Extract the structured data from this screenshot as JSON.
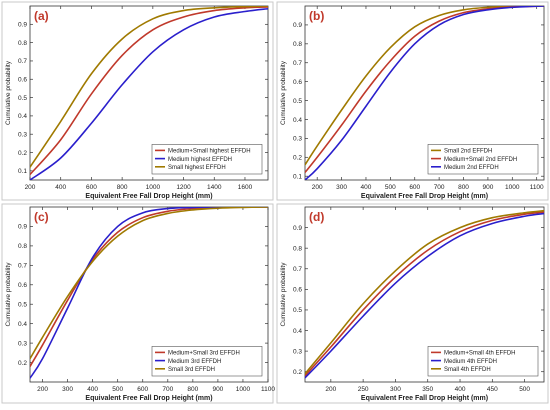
{
  "colors": {
    "medium_small": "#C0392B",
    "medium": "#2A1FCC",
    "small": "#A07A00",
    "panel_label": "#C0392B",
    "panel_border": "#C9C9C9",
    "axis": "#333333"
  },
  "chart_data": [
    {
      "panel": "(a)",
      "type": "line",
      "ylabel": "Cumulative probability",
      "xlabel": "Equivalent Free Fall Drop Height (mm)",
      "xlim": [
        200,
        1750
      ],
      "ylim": [
        0.05,
        1.0
      ],
      "xticks": [
        200,
        400,
        600,
        800,
        1000,
        1200,
        1400,
        1600
      ],
      "yticks": [
        0.1,
        0.2,
        0.3,
        0.4,
        0.5,
        0.6,
        0.7,
        0.8,
        0.9
      ],
      "legend_position": "bottom-right",
      "series": [
        {
          "name": "Medium+Small highest EFFDH",
          "color_key": "medium_small",
          "x": [
            200,
            400,
            600,
            800,
            1000,
            1200,
            1400,
            1600,
            1750
          ],
          "y": [
            0.08,
            0.27,
            0.52,
            0.73,
            0.87,
            0.94,
            0.975,
            0.99,
            0.995
          ]
        },
        {
          "name": "Medium highest EFFDH",
          "color_key": "medium",
          "x": [
            200,
            400,
            600,
            800,
            1000,
            1200,
            1400,
            1600,
            1750
          ],
          "y": [
            0.05,
            0.17,
            0.36,
            0.57,
            0.75,
            0.87,
            0.94,
            0.97,
            0.985
          ]
        },
        {
          "name": "Small highest EFFDH",
          "color_key": "small",
          "x": [
            200,
            400,
            600,
            800,
            1000,
            1200,
            1400,
            1600,
            1750
          ],
          "y": [
            0.12,
            0.37,
            0.63,
            0.82,
            0.93,
            0.975,
            0.99,
            0.997,
            1.0
          ]
        }
      ]
    },
    {
      "panel": "(b)",
      "type": "line",
      "ylabel": "Cumulative probability",
      "xlabel": "Equivalent Free Fall Drop Height (mm)",
      "xlim": [
        150,
        1130
      ],
      "ylim": [
        0.08,
        1.0
      ],
      "xticks": [
        200,
        300,
        400,
        500,
        600,
        700,
        800,
        900,
        1000,
        1100
      ],
      "yticks": [
        0.1,
        0.2,
        0.3,
        0.4,
        0.5,
        0.6,
        0.7,
        0.8,
        0.9
      ],
      "legend_position": "bottom-right",
      "series": [
        {
          "name": "Small 2nd EFFDH",
          "color_key": "small",
          "x": [
            150,
            200,
            300,
            400,
            500,
            600,
            700,
            800,
            900,
            1000,
            1130
          ],
          "y": [
            0.16,
            0.26,
            0.45,
            0.63,
            0.78,
            0.89,
            0.95,
            0.98,
            0.993,
            0.998,
            1.0
          ]
        },
        {
          "name": "Medium+Small 2nd EFFDH",
          "color_key": "medium_small",
          "x": [
            150,
            200,
            300,
            400,
            500,
            600,
            700,
            800,
            900,
            1000,
            1130
          ],
          "y": [
            0.12,
            0.2,
            0.37,
            0.55,
            0.71,
            0.84,
            0.92,
            0.965,
            0.985,
            0.995,
            1.0
          ]
        },
        {
          "name": "Medium 2nd EFFDH",
          "color_key": "medium",
          "x": [
            150,
            200,
            300,
            400,
            500,
            600,
            700,
            800,
            900,
            1000,
            1130
          ],
          "y": [
            0.08,
            0.14,
            0.29,
            0.47,
            0.65,
            0.8,
            0.9,
            0.955,
            0.98,
            0.993,
            1.0
          ]
        }
      ]
    },
    {
      "panel": "(c)",
      "type": "line",
      "ylabel": "Cumulative probability",
      "xlabel": "Equivalent Free Fall Drop Height (mm)",
      "xlim": [
        150,
        1100
      ],
      "ylim": [
        0.1,
        1.0
      ],
      "xticks": [
        200,
        300,
        400,
        500,
        600,
        700,
        800,
        900,
        1000,
        1100
      ],
      "yticks": [
        0.2,
        0.3,
        0.4,
        0.5,
        0.6,
        0.7,
        0.8,
        0.9
      ],
      "legend_position": "bottom-right",
      "series": [
        {
          "name": "Medium+Small 3rd EFFDH",
          "color_key": "medium_small",
          "x": [
            150,
            200,
            300,
            400,
            500,
            600,
            700,
            800,
            900,
            1000,
            1100
          ],
          "y": [
            0.18,
            0.29,
            0.52,
            0.73,
            0.87,
            0.945,
            0.978,
            0.992,
            0.997,
            0.999,
            1.0
          ]
        },
        {
          "name": "Medium 3rd EFFDH",
          "color_key": "medium",
          "x": [
            150,
            200,
            300,
            400,
            500,
            600,
            700,
            800,
            900,
            1000,
            1100
          ],
          "y": [
            0.12,
            0.22,
            0.48,
            0.74,
            0.9,
            0.97,
            0.992,
            0.998,
            1.0,
            1.0,
            1.0
          ]
        },
        {
          "name": "Small 3rd EFFDH",
          "color_key": "small",
          "x": [
            150,
            200,
            300,
            400,
            500,
            600,
            700,
            800,
            900,
            1000,
            1100
          ],
          "y": [
            0.22,
            0.33,
            0.54,
            0.72,
            0.85,
            0.93,
            0.967,
            0.985,
            0.994,
            0.998,
            1.0
          ]
        }
      ]
    },
    {
      "panel": "(d)",
      "type": "line",
      "ylabel": "Cumulative probability",
      "xlabel": "Equivalent Free Fall Drop Height (mm)",
      "xlim": [
        160,
        530
      ],
      "ylim": [
        0.15,
        1.0
      ],
      "xticks": [
        200,
        250,
        300,
        350,
        400,
        450,
        500
      ],
      "yticks": [
        0.2,
        0.3,
        0.4,
        0.5,
        0.6,
        0.7,
        0.8,
        0.9
      ],
      "legend_position": "bottom-right",
      "series": [
        {
          "name": "Medium+Small 4th EFFDH",
          "color_key": "medium_small",
          "x": [
            160,
            200,
            250,
            300,
            350,
            400,
            450,
            500,
            530
          ],
          "y": [
            0.18,
            0.32,
            0.5,
            0.66,
            0.79,
            0.88,
            0.935,
            0.965,
            0.975
          ]
        },
        {
          "name": "Medium 4th EFFDH",
          "color_key": "medium",
          "x": [
            160,
            200,
            250,
            300,
            350,
            400,
            450,
            500,
            530
          ],
          "y": [
            0.17,
            0.3,
            0.47,
            0.63,
            0.76,
            0.86,
            0.92,
            0.955,
            0.968
          ]
        },
        {
          "name": "Small 4th EFFDH",
          "color_key": "small",
          "x": [
            160,
            200,
            250,
            300,
            350,
            400,
            450,
            500,
            530
          ],
          "y": [
            0.19,
            0.34,
            0.53,
            0.69,
            0.82,
            0.9,
            0.948,
            0.972,
            0.982
          ]
        }
      ]
    }
  ]
}
